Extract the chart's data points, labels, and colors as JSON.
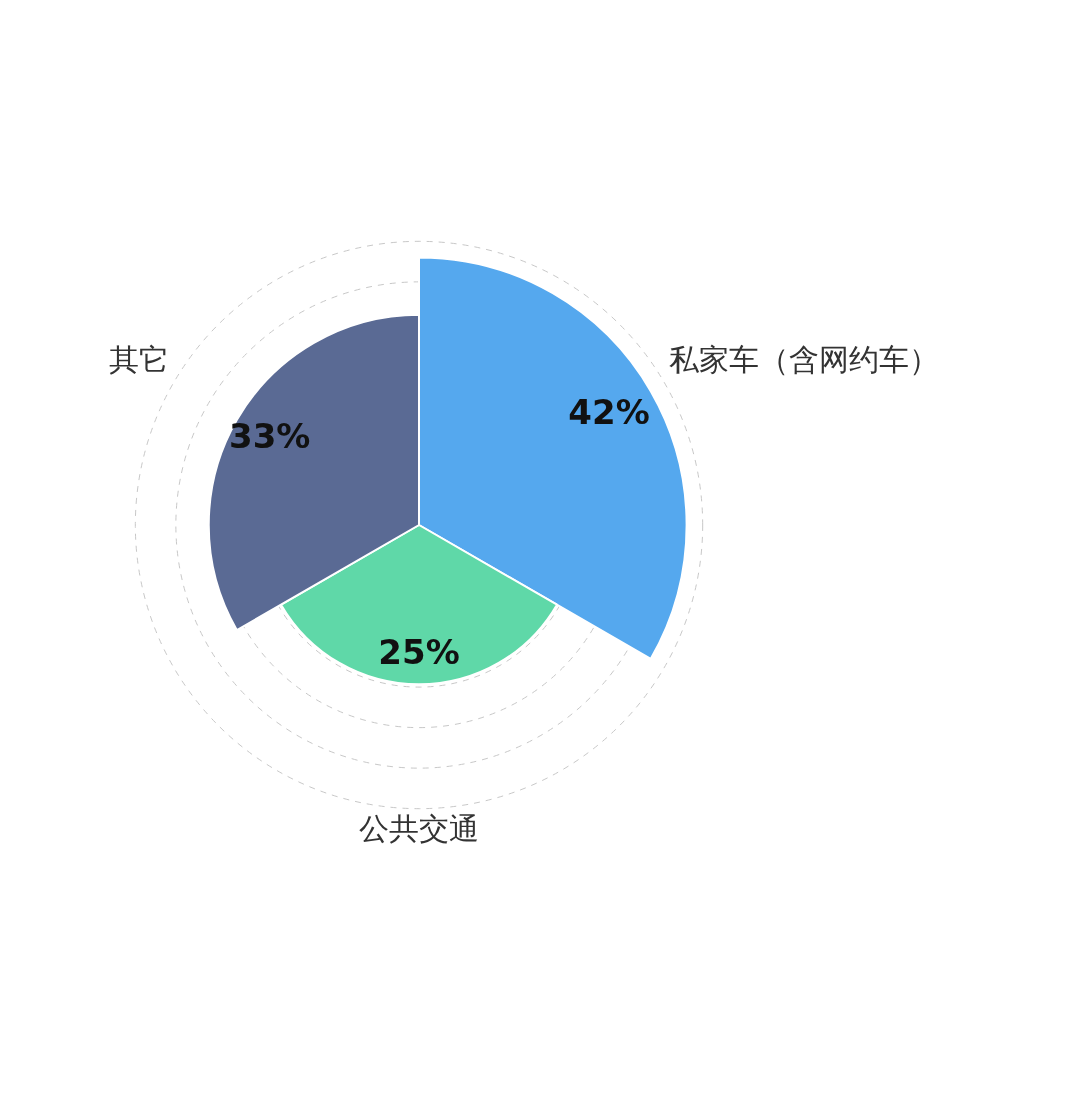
{
  "chart_data": {
    "type": "other",
    "categories": [
      "私家车（含网约车）",
      "公共交通",
      "其它"
    ],
    "values": [
      42,
      25,
      33
    ],
    "colors": [
      "#55a8ee",
      "#5fd8a8",
      "#5a6a94"
    ],
    "value_labels": [
      "42%",
      "25%",
      "33%"
    ]
  }
}
